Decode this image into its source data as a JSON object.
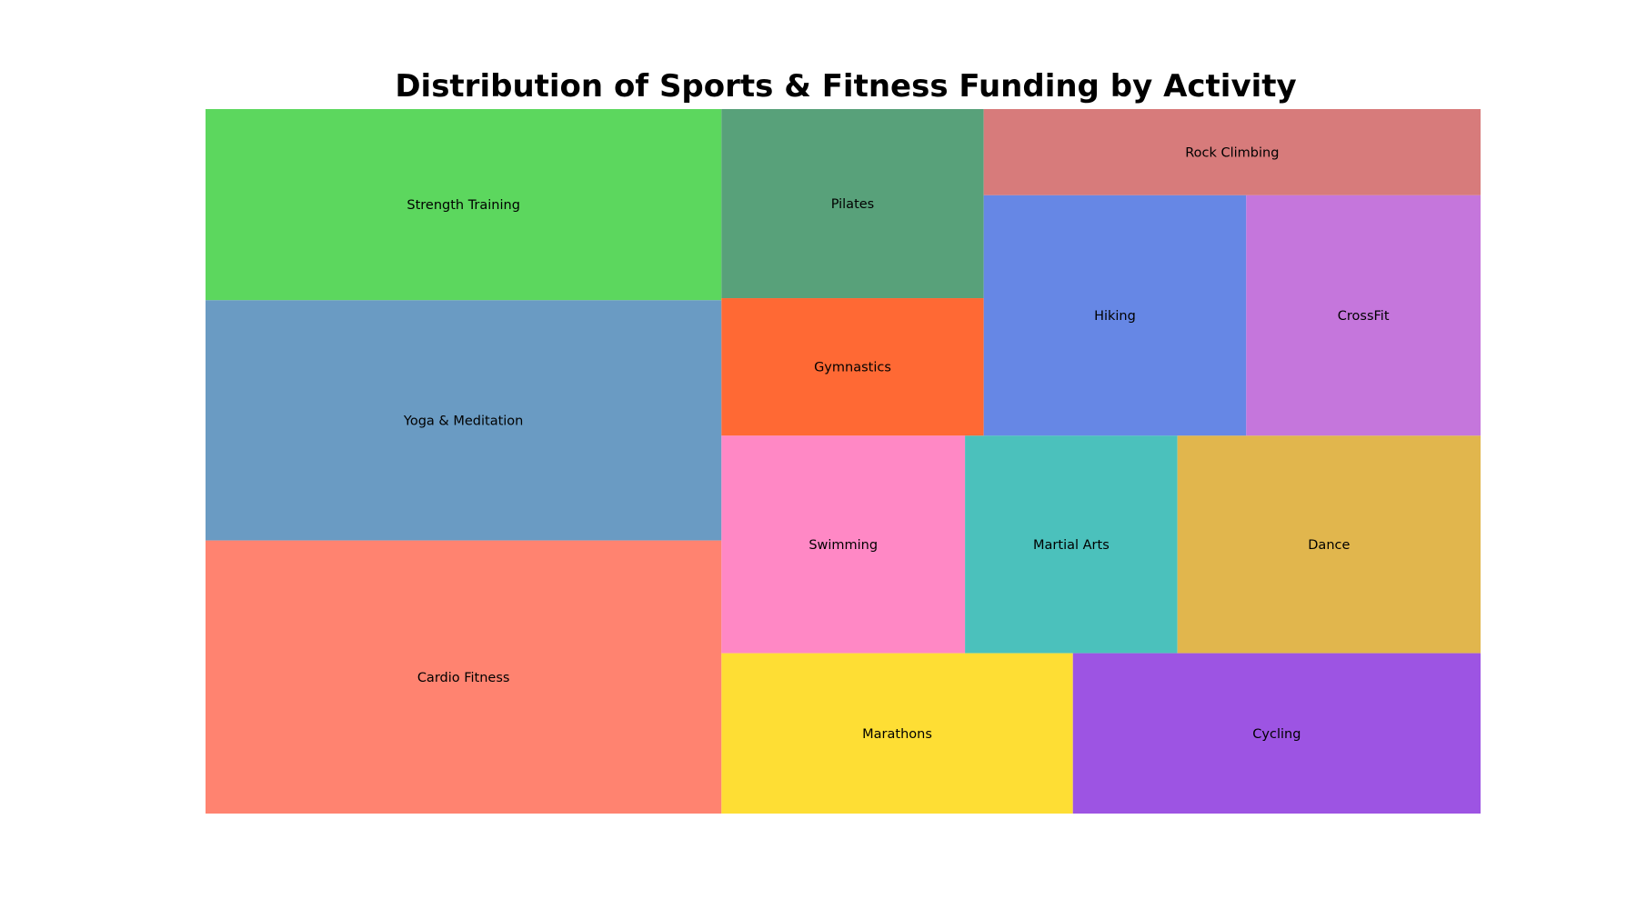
{
  "chart_data": {
    "type": "treemap",
    "title": "Distribution of Sports & Fitness Funding by Activity",
    "items": [
      {
        "label": "Cardio Fitness",
        "value": 25,
        "color": "#FF8370"
      },
      {
        "label": "Yoga & Meditation",
        "value": 22,
        "color": "#6A9BC3"
      },
      {
        "label": "Strength Training",
        "value": 17.5,
        "color": "#5CD75E"
      },
      {
        "label": "Marathons",
        "value": 10,
        "color": "#FEDE34"
      },
      {
        "label": "Cycling",
        "value": 11.6,
        "color": "#9D54E3"
      },
      {
        "label": "Swimming",
        "value": 9.4,
        "color": "#FF88C5"
      },
      {
        "label": "Martial Arts",
        "value": 8.2,
        "color": "#4BC1BC"
      },
      {
        "label": "Dance",
        "value": 11.7,
        "color": "#E1B64D"
      },
      {
        "label": "Pilates",
        "value": 8.8,
        "color": "#58A17A"
      },
      {
        "label": "Gymnastics",
        "value": 6.4,
        "color": "#FF6934"
      },
      {
        "label": "Rock Climbing",
        "value": 7.6,
        "color": "#D77B7B"
      },
      {
        "label": "Hiking",
        "value": 11.2,
        "color": "#6687E5"
      },
      {
        "label": "CrossFit",
        "value": 10,
        "color": "#C576DC"
      }
    ]
  }
}
